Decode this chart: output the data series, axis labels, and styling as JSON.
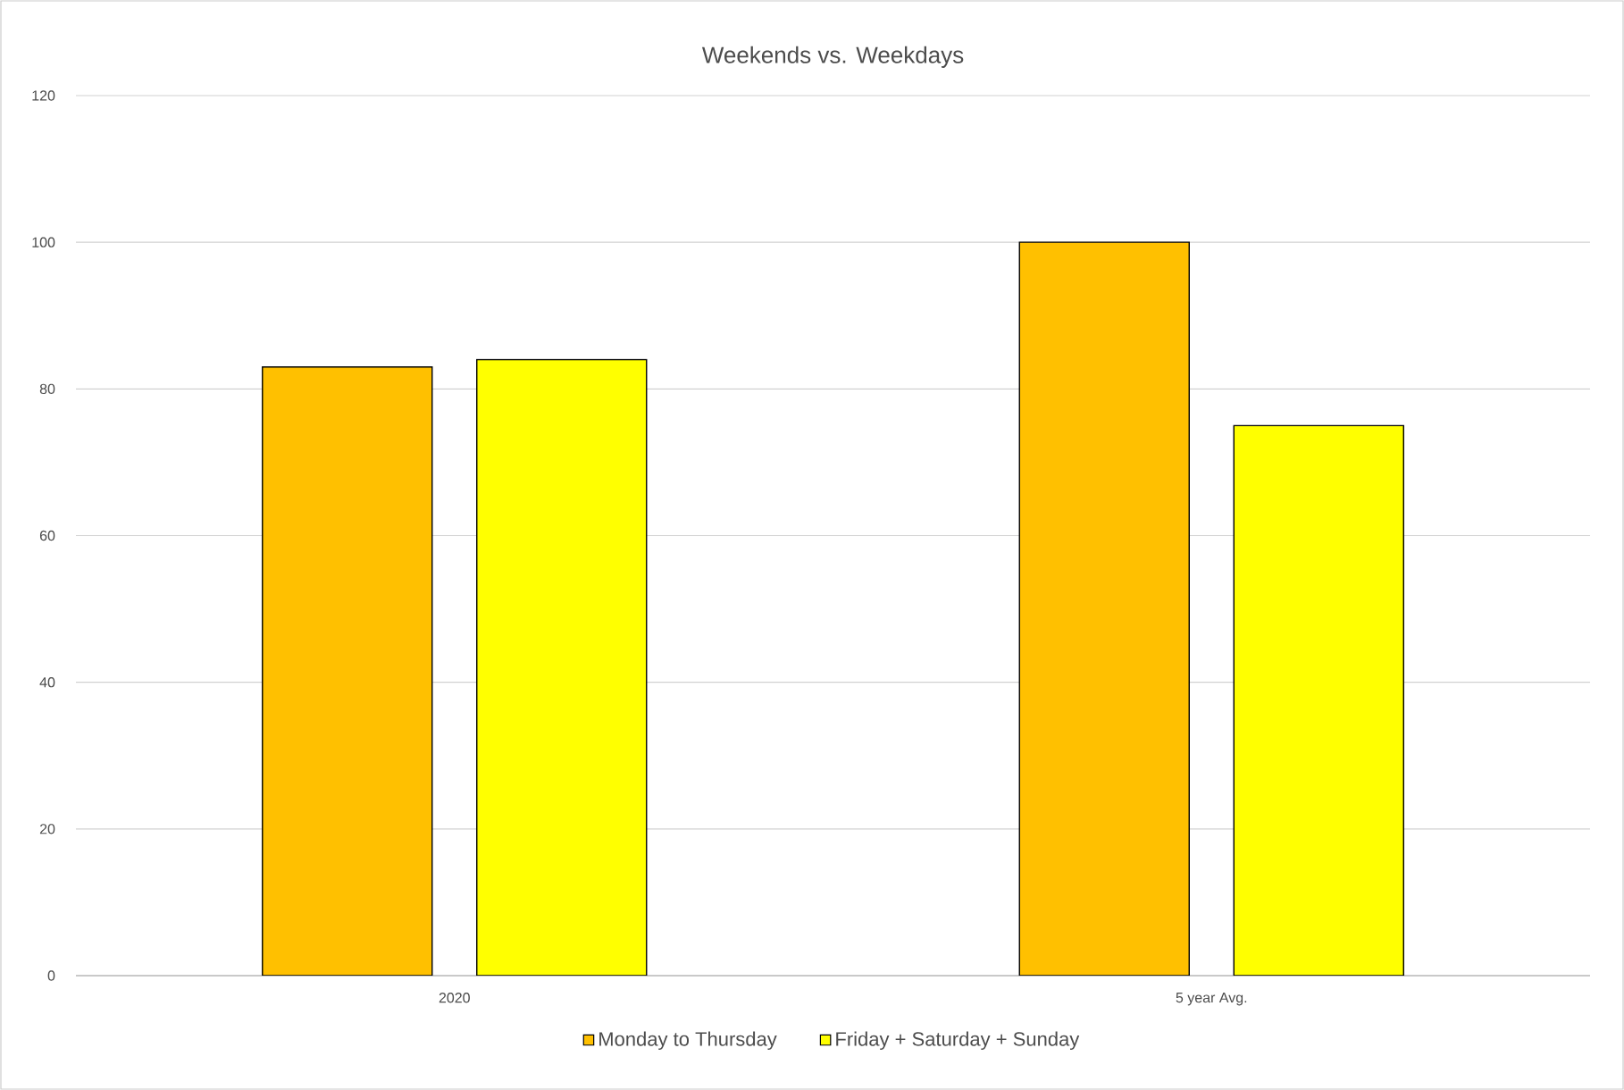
{
  "chart_data": {
    "type": "bar",
    "title": "Weekends vs. Weekdays",
    "categories": [
      "2020",
      "5 year Avg."
    ],
    "series": [
      {
        "name": "Monday to Thursday",
        "color": "#ffc000",
        "values": [
          83,
          100
        ]
      },
      {
        "name": "Friday + Saturday + Sunday",
        "color": "#ffff00",
        "values": [
          84,
          75
        ]
      }
    ],
    "ylim": [
      0,
      120
    ],
    "yticks": [
      0,
      20,
      40,
      60,
      80,
      100,
      120
    ],
    "grid": "y",
    "legend": "bottom"
  }
}
